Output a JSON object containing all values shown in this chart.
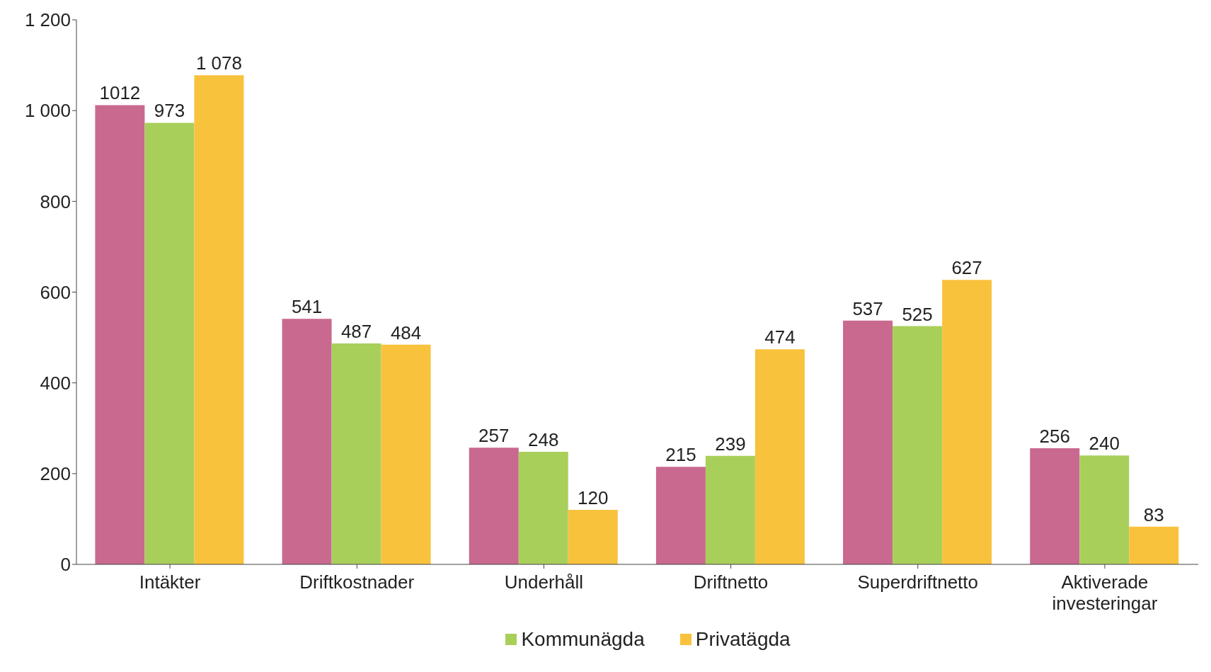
{
  "chart_data": {
    "type": "bar",
    "categories": [
      "Intäkter",
      "Driftkostnader",
      "Underhåll",
      "Driftnetto",
      "Superdriftnetto",
      "Aktiverade investeringar"
    ],
    "series": [
      {
        "color": "#c9698f",
        "values": [
          1012,
          541,
          257,
          215,
          537,
          256
        ],
        "value_labels": [
          "1012",
          "541",
          "257",
          "215",
          "537",
          "256"
        ]
      },
      {
        "name": "Kommunägda",
        "color": "#a9cf5b",
        "values": [
          973,
          487,
          248,
          239,
          525,
          240
        ],
        "value_labels": [
          "973",
          "487",
          "248",
          "239",
          "525",
          "240"
        ]
      },
      {
        "name": "Privatägda",
        "color": "#f9c23c",
        "values": [
          1078,
          484,
          120,
          474,
          627,
          83
        ],
        "value_labels": [
          "1 078",
          "484",
          "120",
          "474",
          "627",
          "83"
        ]
      }
    ],
    "ylim": [
      0,
      1200
    ],
    "yticks": [
      0,
      200,
      400,
      600,
      800,
      {
        "value": 1000,
        "label": "1 000"
      },
      {
        "value": 1200,
        "label": "1 200"
      }
    ],
    "grid": false,
    "legend": "bottom"
  }
}
